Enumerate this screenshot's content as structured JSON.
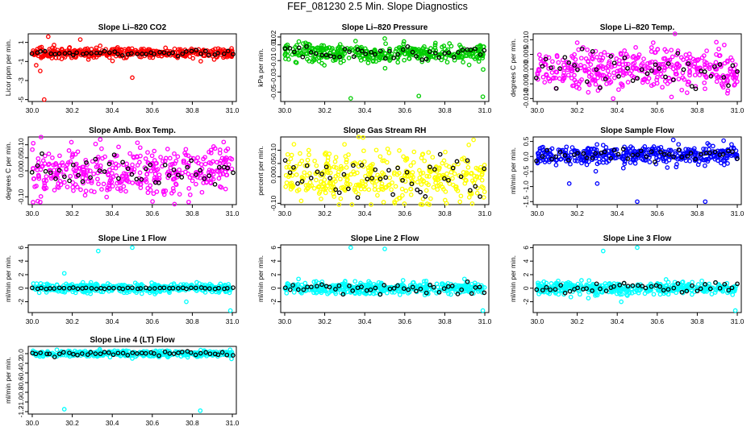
{
  "title": "FEF_081230  2.5 Min. Slope Diagnostics",
  "chart_data": [
    {
      "type": "scatter",
      "title": "Slope Li–820 CO2",
      "ylabel": "Licor ppm per min.",
      "color": "#ff0000",
      "xlim": [
        29.98,
        31.02
      ],
      "ylim": [
        -5.2,
        1.9
      ],
      "yticks": [
        -5,
        -3,
        -1,
        1
      ],
      "ytick_labels": [
        "-5",
        "-3",
        "-1",
        "1"
      ],
      "xticks": [
        30.0,
        30.2,
        30.4,
        30.6,
        30.8,
        31.0
      ],
      "xtick_labels": [
        "30.0",
        "30.2",
        "30.4",
        "30.6",
        "30.8",
        "31.0"
      ],
      "center": -0.1,
      "spread": 0.25,
      "black_spread": 0.12,
      "outliers": [
        {
          "x": 30.04,
          "y": -2.0
        },
        {
          "x": 30.06,
          "y": -5.0
        },
        {
          "x": 30.08,
          "y": 1.6
        },
        {
          "x": 30.24,
          "y": 1.3
        },
        {
          "x": 30.5,
          "y": -2.7
        },
        {
          "x": 30.02,
          "y": -1.4
        }
      ]
    },
    {
      "type": "scatter",
      "title": "Slope Li–820 Pressure",
      "ylabel": "kPa per min.",
      "color": "#00cc00",
      "xlim": [
        29.98,
        31.02
      ],
      "ylim": [
        -0.062,
        0.024
      ],
      "yticks": [
        -0.05,
        -0.03,
        -0.01,
        0.01,
        0.02
      ],
      "ytick_labels": [
        "-0.05",
        "-0.03",
        "-0.01",
        "0.01",
        "0.02"
      ],
      "xticks": [
        30.0,
        30.2,
        30.4,
        30.6,
        30.8,
        31.0
      ],
      "xtick_labels": [
        "30.0",
        "30.2",
        "30.4",
        "30.6",
        "30.8",
        "31.0"
      ],
      "center": 0.0,
      "spread": 0.006,
      "black_spread": 0.004,
      "outliers": [
        {
          "x": 30.33,
          "y": -0.058
        },
        {
          "x": 30.67,
          "y": -0.055
        },
        {
          "x": 30.99,
          "y": -0.056
        },
        {
          "x": 30.5,
          "y": 0.018
        }
      ]
    },
    {
      "type": "scatter",
      "title": "Slope Li–820 Temp.",
      "ylabel": "degrees C per min.",
      "color": "#ff00ff",
      "xlim": [
        29.98,
        31.02
      ],
      "ylim": [
        -0.011,
        0.012
      ],
      "yticks": [
        -0.01,
        -0.005,
        0.0,
        0.005,
        0.01
      ],
      "ytick_labels": [
        "-0.010",
        "-0.005",
        "0.000",
        "0.005",
        "0.010"
      ],
      "xticks": [
        30.0,
        30.2,
        30.4,
        30.6,
        30.8,
        31.0
      ],
      "xtick_labels": [
        "30.0",
        "30.2",
        "30.4",
        "30.6",
        "30.8",
        "31.0"
      ],
      "center": 0.0,
      "spread": 0.0035,
      "black_spread": 0.003,
      "outliers": [
        {
          "x": 30.2,
          "y": 0.009
        },
        {
          "x": 30.58,
          "y": 0.009
        },
        {
          "x": 30.38,
          "y": -0.01
        }
      ]
    },
    {
      "type": "scatter",
      "title": "Slope Amb. Box Temp.",
      "ylabel": "degrees C per min.",
      "color": "#ff00ff",
      "xlim": [
        29.98,
        31.02
      ],
      "ylim": [
        -0.13,
        0.13
      ],
      "yticks": [
        -0.1,
        0.0,
        0.05,
        0.1
      ],
      "ytick_labels": [
        "-0.10",
        "0.00",
        "0.05",
        "0.10"
      ],
      "xticks": [
        30.0,
        30.2,
        30.4,
        30.6,
        30.8,
        31.0
      ],
      "xtick_labels": [
        "30.0",
        "30.2",
        "30.4",
        "30.6",
        "30.8",
        "31.0"
      ],
      "center": 0.0,
      "spread": 0.05,
      "black_spread": 0.03,
      "outliers": [
        {
          "x": 30.34,
          "y": 0.12
        },
        {
          "x": 30.04,
          "y": -0.12
        }
      ]
    },
    {
      "type": "scatter",
      "title": "Slope Gas Stream RH",
      "ylabel": "percent per min.",
      "color": "#ffff00",
      "xlim": [
        29.98,
        31.02
      ],
      "ylim": [
        -0.105,
        0.15
      ],
      "yticks": [
        -0.1,
        0.0,
        0.05,
        0.1
      ],
      "ytick_labels": [
        "-0.10",
        "0.00",
        "0.05",
        "0.10"
      ],
      "xticks": [
        30.0,
        30.2,
        30.4,
        30.6,
        30.8,
        31.0
      ],
      "xtick_labels": [
        "30.0",
        "30.2",
        "30.4",
        "30.6",
        "30.8",
        "31.0"
      ],
      "center": 0.0,
      "spread": 0.045,
      "black_spread": 0.04,
      "outliers": [
        {
          "x": 30.92,
          "y": 0.12
        },
        {
          "x": 30.55,
          "y": -0.1
        }
      ]
    },
    {
      "type": "scatter",
      "title": "Slope Sample Flow",
      "ylabel": "ml/min per min.",
      "color": "#0000ff",
      "xlim": [
        29.98,
        31.02
      ],
      "ylim": [
        -1.6,
        0.65
      ],
      "yticks": [
        -1.5,
        -1.0,
        -0.5,
        0.0,
        0.5
      ],
      "ytick_labels": [
        "-1.5",
        "-1.0",
        "-0.5",
        "0.0",
        "0.5"
      ],
      "xticks": [
        30.0,
        30.2,
        30.4,
        30.6,
        30.8,
        31.0
      ],
      "xtick_labels": [
        "30.0",
        "30.2",
        "30.4",
        "30.6",
        "30.8",
        "31.0"
      ],
      "center": 0.05,
      "spread": 0.15,
      "black_spread": 0.1,
      "outliers": [
        {
          "x": 30.16,
          "y": -0.9
        },
        {
          "x": 30.3,
          "y": -0.9
        },
        {
          "x": 30.5,
          "y": -1.5
        },
        {
          "x": 30.84,
          "y": -1.5
        },
        {
          "x": 30.68,
          "y": 0.55
        }
      ]
    },
    {
      "type": "scatter",
      "title": "Slope Line 1 Flow",
      "ylabel": "ml/min per min.",
      "color": "#00ffff",
      "xlim": [
        29.98,
        31.02
      ],
      "ylim": [
        -3.6,
        6.4
      ],
      "yticks": [
        -2,
        0,
        2,
        4,
        6
      ],
      "ytick_labels": [
        "-2",
        "0",
        "2",
        "4",
        "6"
      ],
      "xticks": [
        30.0,
        30.2,
        30.4,
        30.6,
        30.8,
        31.0
      ],
      "xtick_labels": [
        "30.0",
        "30.2",
        "30.4",
        "30.6",
        "30.8",
        "31.0"
      ],
      "center": 0.0,
      "spread": 0.35,
      "black_spread": 0.05,
      "outliers": [
        {
          "x": 30.33,
          "y": 5.5
        },
        {
          "x": 30.5,
          "y": 6.0
        },
        {
          "x": 30.16,
          "y": 2.2
        },
        {
          "x": 30.99,
          "y": -3.3
        },
        {
          "x": 30.77,
          "y": -2.0
        }
      ]
    },
    {
      "type": "scatter",
      "title": "Slope Line 2 Flow",
      "ylabel": "ml/min per min.",
      "color": "#00ffff",
      "xlim": [
        29.98,
        31.02
      ],
      "ylim": [
        -3.6,
        6.4
      ],
      "yticks": [
        -2,
        0,
        2,
        4,
        6
      ],
      "ytick_labels": [
        "-2",
        "0",
        "2",
        "4",
        "6"
      ],
      "xticks": [
        30.0,
        30.2,
        30.4,
        30.6,
        30.8,
        31.0
      ],
      "xtick_labels": [
        "30.0",
        "30.2",
        "30.4",
        "30.6",
        "30.8",
        "31.0"
      ],
      "center": 0.0,
      "spread": 0.45,
      "black_spread": 0.4,
      "outliers": [
        {
          "x": 30.33,
          "y": 6.0
        },
        {
          "x": 30.5,
          "y": 5.8
        },
        {
          "x": 30.99,
          "y": -3.3
        }
      ]
    },
    {
      "type": "scatter",
      "title": "Slope Line 3 Flow",
      "ylabel": "ml/min per min.",
      "color": "#00ffff",
      "xlim": [
        29.98,
        31.02
      ],
      "ylim": [
        -3.6,
        6.4
      ],
      "yticks": [
        -2,
        0,
        2,
        4,
        6
      ],
      "ytick_labels": [
        "-2",
        "0",
        "2",
        "4",
        "6"
      ],
      "xticks": [
        30.0,
        30.2,
        30.4,
        30.6,
        30.8,
        31.0
      ],
      "xtick_labels": [
        "30.0",
        "30.2",
        "30.4",
        "30.6",
        "30.8",
        "31.0"
      ],
      "center": 0.0,
      "spread": 0.45,
      "black_spread": 0.4,
      "outliers": [
        {
          "x": 30.33,
          "y": 5.5
        },
        {
          "x": 30.5,
          "y": 6.0
        },
        {
          "x": 30.99,
          "y": -3.3
        },
        {
          "x": 30.42,
          "y": -2.0
        }
      ]
    },
    {
      "type": "scatter",
      "title": "Slope Line 4 (LT) Flow",
      "ylabel": "ml/min per min.",
      "color": "#00ffff",
      "xlim": [
        29.98,
        31.02
      ],
      "ylim": [
        -1.25,
        0.15
      ],
      "yticks": [
        -1.2,
        -1.0,
        -0.8,
        -0.6,
        -0.4,
        -0.2,
        0.0
      ],
      "ytick_labels": [
        "-1.2",
        "-1.0",
        "-0.8",
        "-0.6",
        "-0.4",
        "-0.2",
        "0.0"
      ],
      "xticks": [
        30.0,
        30.2,
        30.4,
        30.6,
        30.8,
        31.0
      ],
      "xtick_labels": [
        "30.0",
        "30.2",
        "30.4",
        "30.6",
        "30.8",
        "31.0"
      ],
      "center": 0.0,
      "spread": 0.03,
      "black_spread": 0.025,
      "outliers": [
        {
          "x": 30.16,
          "y": -1.15
        },
        {
          "x": 30.84,
          "y": -1.18
        },
        {
          "x": 30.5,
          "y": -0.1
        }
      ]
    }
  ]
}
